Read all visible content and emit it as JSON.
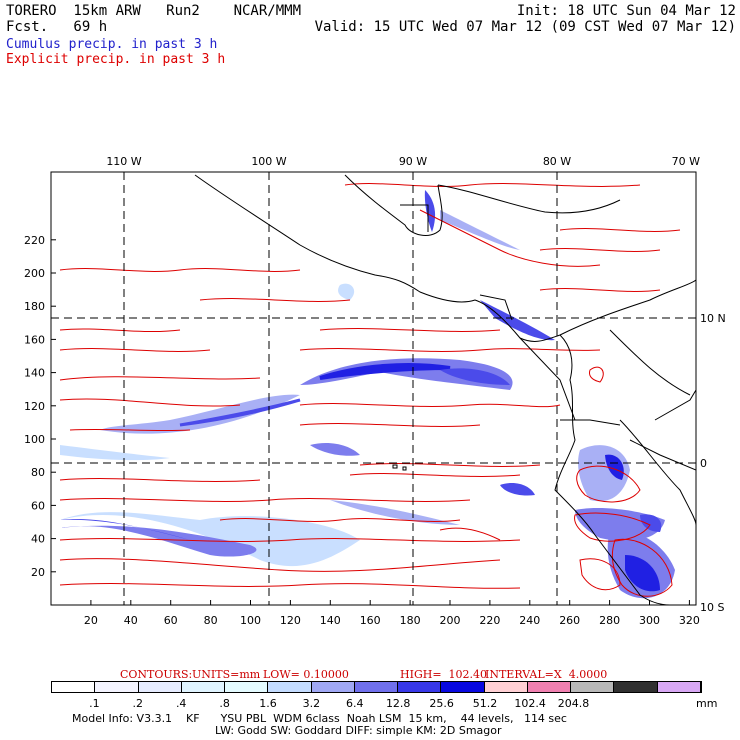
{
  "header": {
    "model": "TORERO  15km ARW   Run2    NCAR/MMM",
    "forecast": "Fcst.   69 h",
    "init": "Init: 18 UTC Sun 04 Mar 12",
    "valid": "Valid: 15 UTC Wed 07 Mar 12 (09 CST Wed 07 Mar 12)"
  },
  "legend": {
    "cumulus": "Cumulus precip. in past 3 h",
    "explicit": "Explicit precip. in past 3 h",
    "cumulus_color": "#2222cc",
    "explicit_color": "#dd0000"
  },
  "map": {
    "top_lon_labels": [
      "110 W",
      "100 W",
      "90 W",
      "80 W",
      "70 W"
    ],
    "right_lat_labels": [
      "10 N",
      "0",
      "10 S"
    ],
    "x_grid_labels": [
      "20",
      "40",
      "60",
      "80",
      "100",
      "120",
      "140",
      "160",
      "180",
      "200",
      "220",
      "240",
      "260",
      "280",
      "300",
      "320"
    ],
    "y_grid_labels": [
      "20",
      "40",
      "60",
      "80",
      "100",
      "120",
      "140",
      "160",
      "180",
      "200",
      "220"
    ]
  },
  "contour_info": {
    "label": "CONTOURS:",
    "units": "UNITS=mm",
    "low": "LOW= 0.10000",
    "high": "HIGH=  102.40",
    "interval": "INTERVAL=X  4.0000"
  },
  "colorbar": {
    "colors": [
      "#ffffff",
      "#f4f4ff",
      "#e6ecff",
      "#e0f4ff",
      "#e4fbff",
      "#c4dcff",
      "#a0a8f4",
      "#7070ec",
      "#3838e8",
      "#0808e0",
      "#ffd0d4",
      "#f080b0",
      "#b8b8b8",
      "#303030",
      "#d8a8f4"
    ],
    "labels": [
      ".1",
      ".2",
      ".4",
      ".8",
      "1.6",
      "3.2",
      "6.4",
      "12.8",
      "25.6",
      "51.2",
      "102.4",
      "204.8"
    ],
    "unit": "mm"
  },
  "model_info": {
    "line1": "Model Info: V3.3.1    KF      YSU PBL  WDM 6class  Noah LSM  15 km,    44 levels,   114 sec",
    "line2": "LW: Godd SW: Goddard DIFF: simple KM: 2D Smagor"
  }
}
